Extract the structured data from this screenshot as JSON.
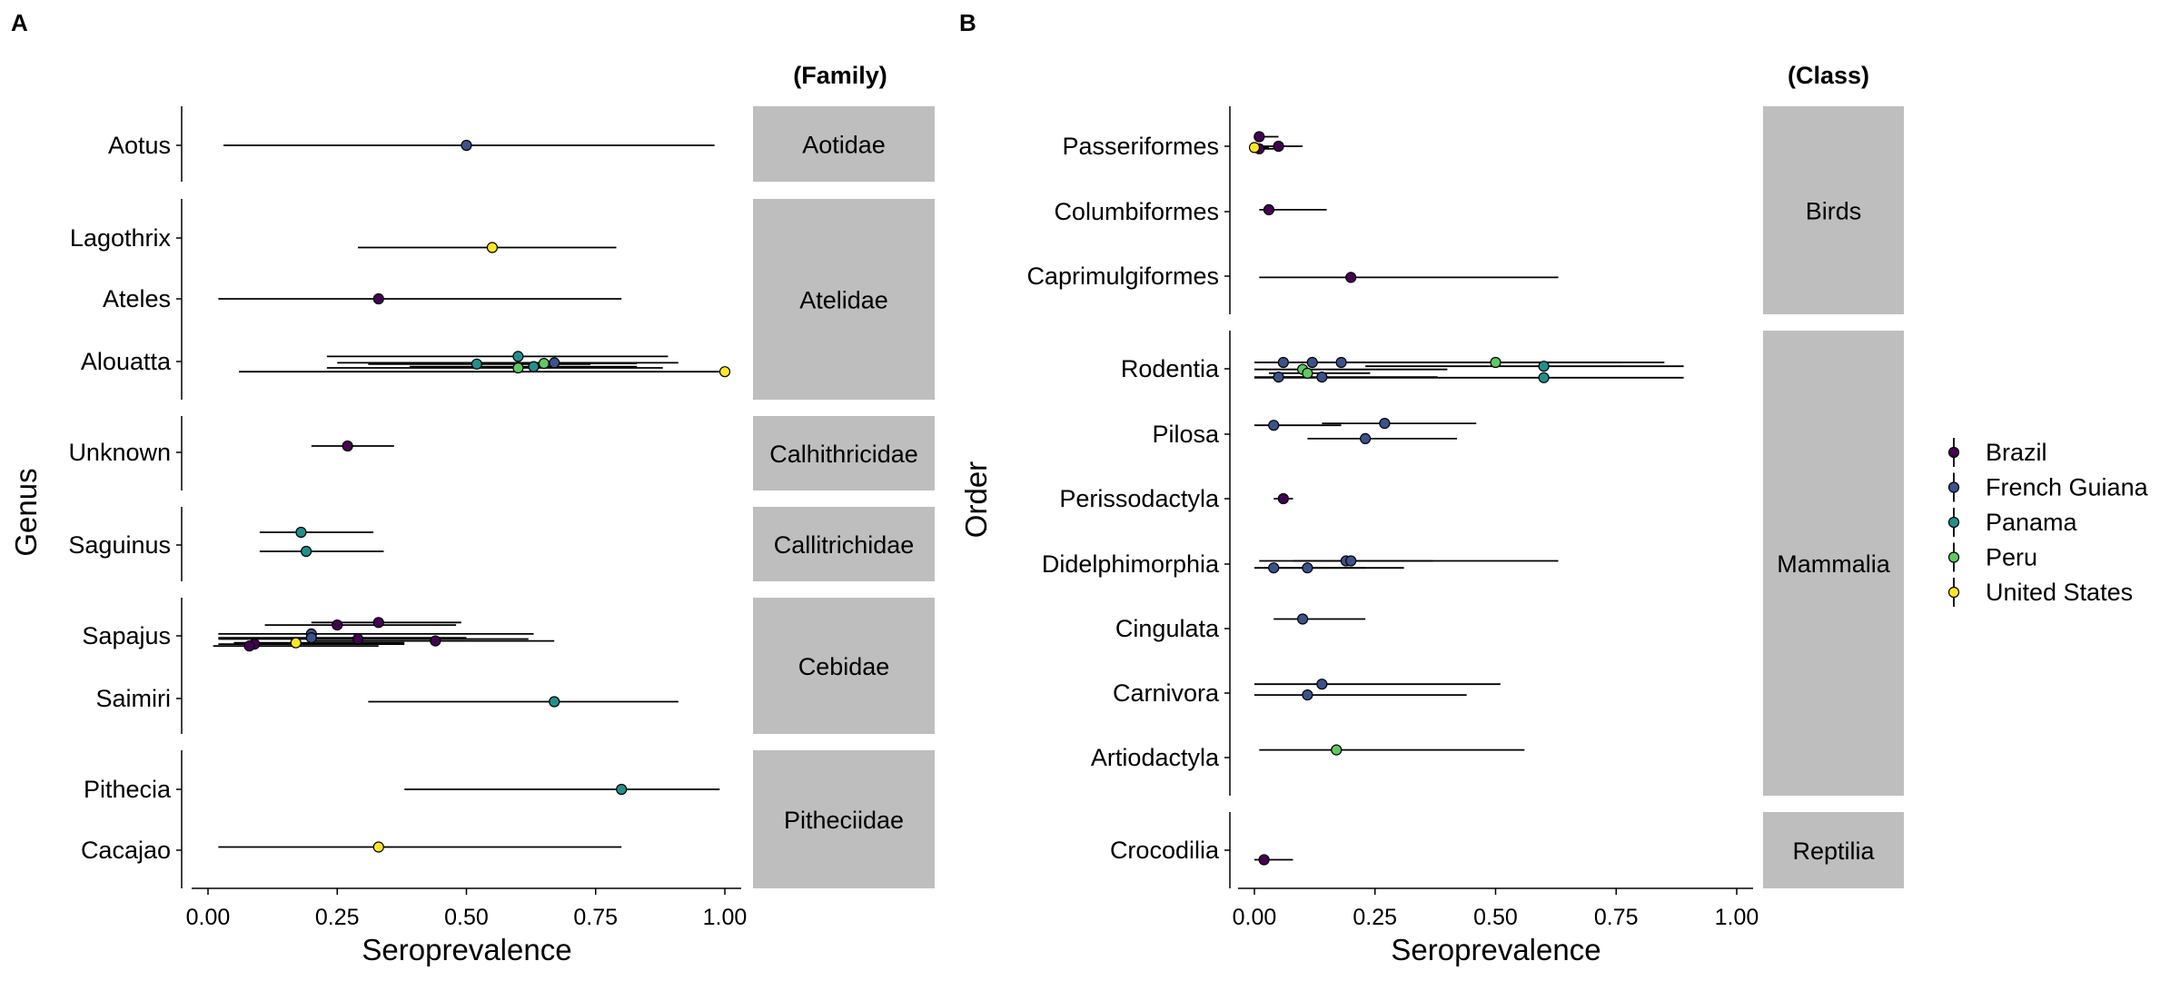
{
  "colors": {
    "Brazil": "#440154",
    "French Guiana": "#3b528b",
    "Panama": "#21908c",
    "Peru": "#5ec962",
    "United States": "#fde725",
    "strip": "#bebebe"
  },
  "legend": {
    "position": "right",
    "entries": [
      "Brazil",
      "French Guiana",
      "Panama",
      "Peru",
      "United States"
    ]
  },
  "chart_data": [
    {
      "type": "scatter",
      "panel_label": "A",
      "xlabel": "Seroprevalence",
      "ylabel": "Genus",
      "strip_title": "(Family)",
      "xlim": [
        0,
        1
      ],
      "xticks": [
        "0.00",
        "0.25",
        "0.50",
        "0.75",
        "1.00"
      ],
      "facets": [
        {
          "name": "Aotidae",
          "rows": [
            "Aotus"
          ]
        },
        {
          "name": "Atelidae",
          "rows": [
            "Lagothrix",
            "Ateles",
            "Alouatta"
          ]
        },
        {
          "name": "Calhithricidae",
          "rows": [
            "Unknown"
          ]
        },
        {
          "name": "Callitrichidae",
          "rows": [
            "Saguinus"
          ]
        },
        {
          "name": "Cebidae",
          "rows": [
            "Sapajus",
            "Saimiri"
          ]
        },
        {
          "name": "Pitheciidae",
          "rows": [
            "Pithecia",
            "Cacajao"
          ]
        }
      ],
      "points": [
        {
          "row": "Aotus",
          "country": "French Guiana",
          "x": 0.5,
          "lo": 0.03,
          "hi": 0.98,
          "dy": 0
        },
        {
          "row": "Lagothrix",
          "country": "United States",
          "x": 0.55,
          "lo": 0.29,
          "hi": 0.79,
          "dy": 0.15
        },
        {
          "row": "Ateles",
          "country": "Brazil",
          "x": 0.33,
          "lo": 0.02,
          "hi": 0.8,
          "dy": 0
        },
        {
          "row": "Alouatta",
          "country": "Panama",
          "x": 0.6,
          "lo": 0.23,
          "hi": 0.89,
          "dy": -0.08
        },
        {
          "row": "Alouatta",
          "country": "French Guiana",
          "x": 0.67,
          "lo": 0.25,
          "hi": 0.91,
          "dy": 0.02
        },
        {
          "row": "Alouatta",
          "country": "Panama",
          "x": 0.52,
          "lo": 0.31,
          "hi": 0.74,
          "dy": 0.04
        },
        {
          "row": "Alouatta",
          "country": "Peru",
          "x": 0.65,
          "lo": 0.43,
          "hi": 0.83,
          "dy": 0.03
        },
        {
          "row": "Alouatta",
          "country": "Peru",
          "x": 0.6,
          "lo": 0.23,
          "hi": 0.88,
          "dy": 0.1
        },
        {
          "row": "Alouatta",
          "country": "Panama",
          "x": 0.63,
          "lo": 0.39,
          "hi": 0.83,
          "dy": 0.08
        },
        {
          "row": "Alouatta",
          "country": "United States",
          "x": 1.0,
          "lo": 0.06,
          "hi": 1.0,
          "dy": 0.16
        },
        {
          "row": "Unknown",
          "country": "Brazil",
          "x": 0.27,
          "lo": 0.2,
          "hi": 0.36,
          "dy": -0.1
        },
        {
          "row": "Saguinus",
          "country": "Panama",
          "x": 0.18,
          "lo": 0.1,
          "hi": 0.32,
          "dy": -0.2
        },
        {
          "row": "Saguinus",
          "country": "Panama",
          "x": 0.19,
          "lo": 0.1,
          "hi": 0.34,
          "dy": 0.1
        },
        {
          "row": "Sapajus",
          "country": "Brazil",
          "x": 0.25,
          "lo": 0.11,
          "hi": 0.48,
          "dy": -0.17
        },
        {
          "row": "Sapajus",
          "country": "Brazil",
          "x": 0.33,
          "lo": 0.2,
          "hi": 0.49,
          "dy": -0.21
        },
        {
          "row": "Sapajus",
          "country": "French Guiana",
          "x": 0.2,
          "lo": 0.02,
          "hi": 0.63,
          "dy": -0.03
        },
        {
          "row": "Sapajus",
          "country": "French Guiana",
          "x": 0.2,
          "lo": 0.02,
          "hi": 0.5,
          "dy": 0.03
        },
        {
          "row": "Sapajus",
          "country": "Brazil",
          "x": 0.29,
          "lo": 0.02,
          "hi": 0.62,
          "dy": 0.05
        },
        {
          "row": "Sapajus",
          "country": "Brazil",
          "x": 0.44,
          "lo": 0.2,
          "hi": 0.67,
          "dy": 0.08
        },
        {
          "row": "Sapajus",
          "country": "Brazil",
          "x": 0.09,
          "lo": 0.02,
          "hi": 0.38,
          "dy": 0.13
        },
        {
          "row": "Sapajus",
          "country": "United States",
          "x": 0.17,
          "lo": 0.05,
          "hi": 0.38,
          "dy": 0.11
        },
        {
          "row": "Sapajus",
          "country": "Brazil",
          "x": 0.08,
          "lo": 0.01,
          "hi": 0.33,
          "dy": 0.16
        },
        {
          "row": "Saimiri",
          "country": "Panama",
          "x": 0.67,
          "lo": 0.31,
          "hi": 0.91,
          "dy": 0.05
        },
        {
          "row": "Pithecia",
          "country": "Panama",
          "x": 0.8,
          "lo": 0.38,
          "hi": 0.99,
          "dy": 0
        },
        {
          "row": "Cacajao",
          "country": "United States",
          "x": 0.33,
          "lo": 0.02,
          "hi": 0.8,
          "dy": -0.05
        }
      ]
    },
    {
      "type": "scatter",
      "panel_label": "B",
      "xlabel": "Seroprevalence",
      "ylabel": "Order",
      "strip_title": "(Class)",
      "xlim": [
        0,
        1
      ],
      "xticks": [
        "0.00",
        "0.25",
        "0.50",
        "0.75",
        "1.00"
      ],
      "facets": [
        {
          "name": "Birds",
          "rows": [
            "Passeriformes",
            "Columbiformes",
            "Caprimulgiformes"
          ]
        },
        {
          "name": "Mammalia",
          "rows": [
            "Rodentia",
            "Pilosa",
            "Perissodactyla",
            "Didelphimorphia",
            "Cingulata",
            "Carnivora",
            "Artiodactyla"
          ]
        },
        {
          "name": "Reptilia",
          "rows": [
            "Crocodilia"
          ]
        }
      ],
      "points": [
        {
          "row": "Passeriformes",
          "country": "Brazil",
          "x": 0.01,
          "lo": 0.0,
          "hi": 0.05,
          "dy": -0.15
        },
        {
          "row": "Passeriformes",
          "country": "Brazil",
          "x": 0.05,
          "lo": 0.01,
          "hi": 0.1,
          "dy": 0
        },
        {
          "row": "Passeriformes",
          "country": "Brazil",
          "x": 0.01,
          "lo": 0.0,
          "hi": 0.04,
          "dy": 0.04
        },
        {
          "row": "Passeriformes",
          "country": "United States",
          "x": 0.0,
          "lo": 0.0,
          "hi": 0.03,
          "dy": 0.02
        },
        {
          "row": "Columbiformes",
          "country": "Brazil",
          "x": 0.03,
          "lo": 0.01,
          "hi": 0.15,
          "dy": -0.03
        },
        {
          "row": "Caprimulgiformes",
          "country": "Brazil",
          "x": 0.2,
          "lo": 0.01,
          "hi": 0.63,
          "dy": 0.02
        },
        {
          "row": "Rodentia",
          "country": "French Guiana",
          "x": 0.06,
          "lo": 0.0,
          "hi": 0.35,
          "dy": -0.1
        },
        {
          "row": "Rodentia",
          "country": "French Guiana",
          "x": 0.12,
          "lo": 0.04,
          "hi": 0.28,
          "dy": -0.1
        },
        {
          "row": "Rodentia",
          "country": "French Guiana",
          "x": 0.18,
          "lo": 0.0,
          "hi": 0.85,
          "dy": -0.1
        },
        {
          "row": "Rodentia",
          "country": "Peru",
          "x": 0.5,
          "lo": 0.24,
          "hi": 0.76,
          "dy": -0.1
        },
        {
          "row": "Rodentia",
          "country": "Panama",
          "x": 0.6,
          "lo": 0.23,
          "hi": 0.89,
          "dy": -0.04
        },
        {
          "row": "Rodentia",
          "country": "Peru",
          "x": 0.1,
          "lo": 0.0,
          "hi": 0.4,
          "dy": 0.01
        },
        {
          "row": "Rodentia",
          "country": "Peru",
          "x": 0.11,
          "lo": 0.03,
          "hi": 0.24,
          "dy": 0.07
        },
        {
          "row": "Rodentia",
          "country": "French Guiana",
          "x": 0.05,
          "lo": 0.0,
          "hi": 0.12,
          "dy": 0.13
        },
        {
          "row": "Rodentia",
          "country": "French Guiana",
          "x": 0.14,
          "lo": 0.04,
          "hi": 0.38,
          "dy": 0.13
        },
        {
          "row": "Rodentia",
          "country": "Panama",
          "x": 0.6,
          "lo": 0.0,
          "hi": 0.89,
          "dy": 0.14
        },
        {
          "row": "Pilosa",
          "country": "French Guiana",
          "x": 0.27,
          "lo": 0.14,
          "hi": 0.46,
          "dy": -0.17
        },
        {
          "row": "Pilosa",
          "country": "French Guiana",
          "x": 0.04,
          "lo": 0.0,
          "hi": 0.18,
          "dy": -0.14
        },
        {
          "row": "Pilosa",
          "country": "French Guiana",
          "x": 0.23,
          "lo": 0.11,
          "hi": 0.42,
          "dy": 0.07
        },
        {
          "row": "Perissodactyla",
          "country": "Brazil",
          "x": 0.06,
          "lo": 0.04,
          "hi": 0.08,
          "dy": 0
        },
        {
          "row": "Didelphimorphia",
          "country": "French Guiana",
          "x": 0.19,
          "lo": 0.08,
          "hi": 0.37,
          "dy": -0.05
        },
        {
          "row": "Didelphimorphia",
          "country": "French Guiana",
          "x": 0.2,
          "lo": 0.01,
          "hi": 0.63,
          "dy": -0.05
        },
        {
          "row": "Didelphimorphia",
          "country": "French Guiana",
          "x": 0.04,
          "lo": 0.0,
          "hi": 0.23,
          "dy": 0.06
        },
        {
          "row": "Didelphimorphia",
          "country": "French Guiana",
          "x": 0.11,
          "lo": 0.02,
          "hi": 0.31,
          "dy": 0.06
        },
        {
          "row": "Cingulata",
          "country": "French Guiana",
          "x": 0.1,
          "lo": 0.04,
          "hi": 0.23,
          "dy": -0.15
        },
        {
          "row": "Carnivora",
          "country": "French Guiana",
          "x": 0.14,
          "lo": 0.0,
          "hi": 0.51,
          "dy": -0.14
        },
        {
          "row": "Carnivora",
          "country": "French Guiana",
          "x": 0.11,
          "lo": 0.0,
          "hi": 0.44,
          "dy": 0.03
        },
        {
          "row": "Artiodactyla",
          "country": "Peru",
          "x": 0.17,
          "lo": 0.01,
          "hi": 0.56,
          "dy": -0.12
        },
        {
          "row": "Crocodilia",
          "country": "Brazil",
          "x": 0.02,
          "lo": 0.0,
          "hi": 0.08,
          "dy": 0.15
        }
      ]
    }
  ]
}
